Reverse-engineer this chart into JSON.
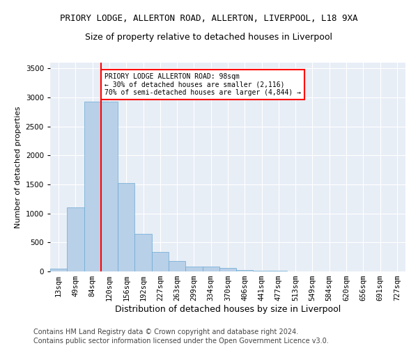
{
  "title1": "PRIORY LODGE, ALLERTON ROAD, ALLERTON, LIVERPOOL, L18 9XA",
  "title2": "Size of property relative to detached houses in Liverpool",
  "xlabel": "Distribution of detached houses by size in Liverpool",
  "ylabel": "Number of detached properties",
  "categories": [
    "13sqm",
    "49sqm",
    "84sqm",
    "120sqm",
    "156sqm",
    "192sqm",
    "227sqm",
    "263sqm",
    "299sqm",
    "334sqm",
    "370sqm",
    "406sqm",
    "441sqm",
    "477sqm",
    "513sqm",
    "549sqm",
    "584sqm",
    "620sqm",
    "656sqm",
    "691sqm",
    "727sqm"
  ],
  "values": [
    50,
    1100,
    2930,
    2930,
    1520,
    650,
    340,
    185,
    90,
    90,
    60,
    30,
    15,
    10,
    5,
    3,
    2,
    1,
    1,
    0,
    0
  ],
  "bar_color": "#b8d0e8",
  "bar_edge_color": "#6aaad4",
  "vline_color": "red",
  "vline_x_index": 2,
  "annotation_text": "PRIORY LODGE ALLERTON ROAD: 98sqm\n← 30% of detached houses are smaller (2,116)\n70% of semi-detached houses are larger (4,844) →",
  "annotation_box_color": "white",
  "annotation_box_edge_color": "red",
  "ylim": [
    0,
    3600
  ],
  "yticks": [
    0,
    500,
    1000,
    1500,
    2000,
    2500,
    3000,
    3500
  ],
  "background_color": "#e8eef6",
  "footer1": "Contains HM Land Registry data © Crown copyright and database right 2024.",
  "footer2": "Contains public sector information licensed under the Open Government Licence v3.0.",
  "title1_fontsize": 9,
  "title2_fontsize": 9,
  "xlabel_fontsize": 9,
  "ylabel_fontsize": 8,
  "tick_fontsize": 7.5,
  "footer_fontsize": 7
}
